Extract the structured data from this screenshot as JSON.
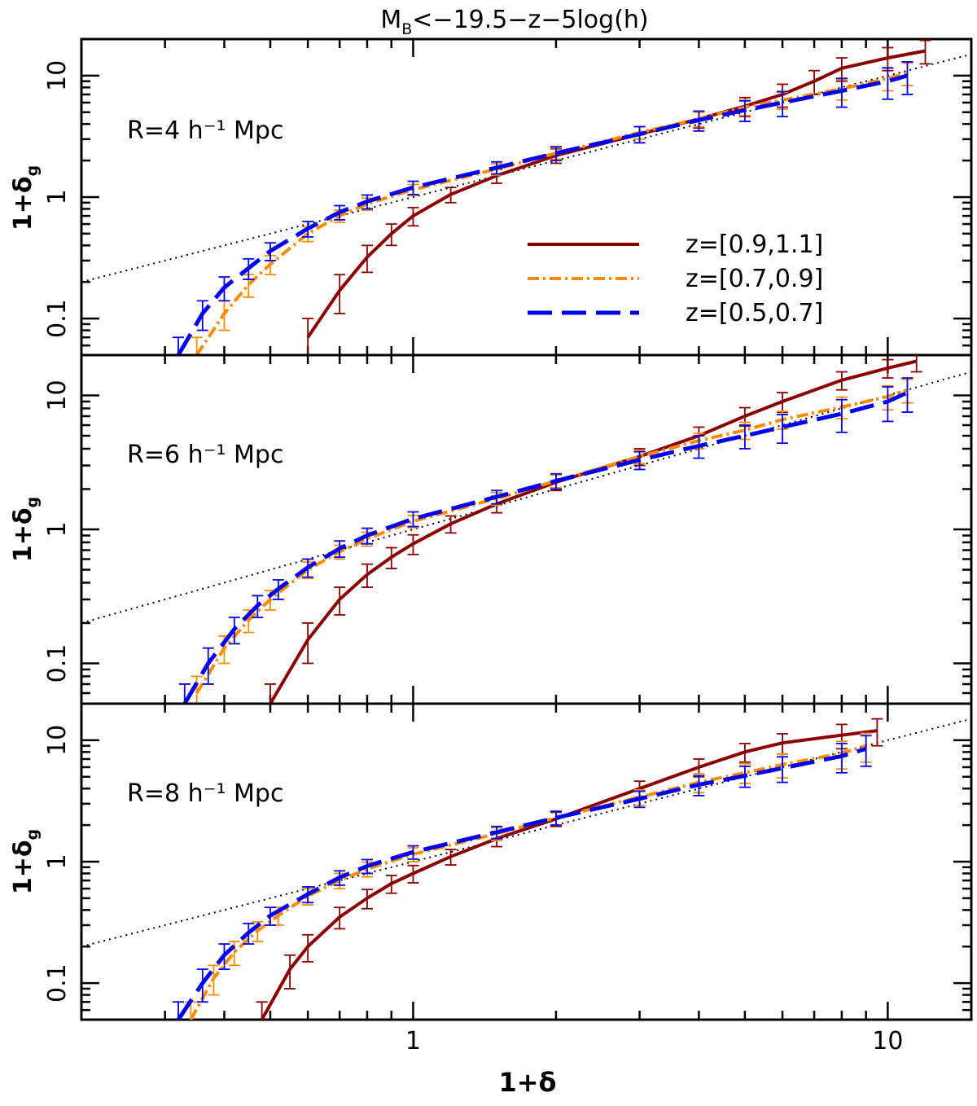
{
  "figure_title": "M<sub>B</sub><−19.5−z−5log(h)",
  "title_main": "M",
  "title_sub": "B",
  "title_rest": "<−19.5−z−5log(h)",
  "xlabel": "1+δ",
  "ylabel_main": "1+δ",
  "ylabel_sub": "g",
  "colors": {
    "z09_11": "#8b0000",
    "z07_09": "#ff8c00",
    "z05_07": "#0000ee",
    "reference": "#000000"
  },
  "legend": [
    {
      "label": "z=[0.9,1.1]",
      "style": "solid",
      "color": "#8b0000"
    },
    {
      "label": "z=[0.7,0.9]",
      "style": "dash-dot",
      "color": "#ff8c00"
    },
    {
      "label": "z=[0.5,0.7]",
      "style": "long-dash",
      "color": "#0000ee"
    }
  ],
  "chart_data": [
    {
      "type": "line",
      "panel_label": "R=4 h⁻¹ Mpc",
      "xlim": [
        0.2,
        15
      ],
      "ylim": [
        0.05,
        20
      ],
      "xscale": "log",
      "yscale": "log",
      "xticks": [],
      "xtick_labels": [
        "",
        "",
        ""
      ],
      "yticks": [
        0.1,
        1,
        10
      ],
      "ytick_labels": [
        "0.1",
        "1",
        "10"
      ],
      "reference_line": {
        "style": "dotted",
        "x": [
          0.2,
          15
        ],
        "y": [
          0.2,
          15
        ]
      },
      "series": [
        {
          "name": "z=[0.9,1.1]",
          "x": [
            0.6,
            0.7,
            0.8,
            0.9,
            1.0,
            1.2,
            1.5,
            2.0,
            3.0,
            4.0,
            5.0,
            6.0,
            7.0,
            8.0,
            10.0,
            12.0
          ],
          "y": [
            0.07,
            0.17,
            0.32,
            0.5,
            0.7,
            1.05,
            1.5,
            2.2,
            3.3,
            4.4,
            5.6,
            7.0,
            9.0,
            11.5,
            14.0,
            16.0
          ],
          "err": [
            0.03,
            0.06,
            0.08,
            0.1,
            0.12,
            0.15,
            0.2,
            0.3,
            0.5,
            0.7,
            1.0,
            1.5,
            2.0,
            2.5,
            3.0,
            3.5
          ]
        },
        {
          "name": "z=[0.7,0.9]",
          "x": [
            0.35,
            0.4,
            0.45,
            0.5,
            0.6,
            0.7,
            0.8,
            1.0,
            1.5,
            2.0,
            3.0,
            4.0,
            5.0,
            6.0,
            8.0,
            10.0,
            11.0
          ],
          "y": [
            0.05,
            0.11,
            0.19,
            0.28,
            0.5,
            0.7,
            0.88,
            1.15,
            1.7,
            2.3,
            3.4,
            4.4,
            5.5,
            6.3,
            7.8,
            9.5,
            10.5
          ],
          "err": [
            0.02,
            0.03,
            0.04,
            0.05,
            0.07,
            0.08,
            0.1,
            0.12,
            0.18,
            0.25,
            0.4,
            0.6,
            0.8,
            1.0,
            1.5,
            2.0,
            2.2
          ]
        },
        {
          "name": "z=[0.5,0.7]",
          "x": [
            0.32,
            0.36,
            0.4,
            0.45,
            0.5,
            0.6,
            0.7,
            0.8,
            1.0,
            1.5,
            2.0,
            3.0,
            4.0,
            5.0,
            6.0,
            8.0,
            10.0,
            11.0
          ],
          "y": [
            0.05,
            0.11,
            0.18,
            0.26,
            0.36,
            0.55,
            0.75,
            0.92,
            1.2,
            1.75,
            2.3,
            3.3,
            4.3,
            5.2,
            6.0,
            7.5,
            9.0,
            10.0
          ],
          "err": [
            0.02,
            0.03,
            0.04,
            0.05,
            0.06,
            0.08,
            0.1,
            0.12,
            0.15,
            0.2,
            0.3,
            0.5,
            0.8,
            1.0,
            1.4,
            2.0,
            2.6,
            3.0
          ]
        }
      ]
    },
    {
      "type": "line",
      "panel_label": "R=6 h⁻¹ Mpc",
      "xlim": [
        0.2,
        15
      ],
      "ylim": [
        0.05,
        20
      ],
      "xscale": "log",
      "yscale": "log",
      "xticks": [],
      "xtick_labels": [
        "",
        "",
        ""
      ],
      "yticks": [
        0.1,
        1,
        10
      ],
      "ytick_labels": [
        "0.1",
        "1",
        "10"
      ],
      "reference_line": {
        "style": "dotted",
        "x": [
          0.2,
          15
        ],
        "y": [
          0.2,
          15
        ]
      },
      "series": [
        {
          "name": "z=[0.9,1.1]",
          "x": [
            0.5,
            0.6,
            0.7,
            0.8,
            0.9,
            1.0,
            1.2,
            1.5,
            2.0,
            3.0,
            4.0,
            5.0,
            6.0,
            8.0,
            10.0,
            11.5
          ],
          "y": [
            0.05,
            0.15,
            0.3,
            0.46,
            0.62,
            0.78,
            1.1,
            1.55,
            2.25,
            3.5,
            5.0,
            7.0,
            9.0,
            13.0,
            16.0,
            18.0
          ],
          "err": [
            0.02,
            0.05,
            0.07,
            0.09,
            0.11,
            0.13,
            0.16,
            0.22,
            0.3,
            0.5,
            0.8,
            1.1,
            1.5,
            2.0,
            2.5,
            3.0
          ]
        },
        {
          "name": "z=[0.7,0.9]",
          "x": [
            0.35,
            0.4,
            0.45,
            0.5,
            0.6,
            0.7,
            0.8,
            1.0,
            1.5,
            2.0,
            3.0,
            4.0,
            5.0,
            6.0,
            8.0,
            10.0,
            11.0
          ],
          "y": [
            0.06,
            0.13,
            0.21,
            0.3,
            0.5,
            0.68,
            0.85,
            1.15,
            1.7,
            2.3,
            3.5,
            4.6,
            5.5,
            6.6,
            8.2,
            9.8,
            11.0
          ],
          "err": [
            0.02,
            0.03,
            0.04,
            0.05,
            0.07,
            0.08,
            0.1,
            0.12,
            0.18,
            0.25,
            0.4,
            0.6,
            0.8,
            1.0,
            1.5,
            2.0,
            2.2
          ]
        },
        {
          "name": "z=[0.5,0.7]",
          "x": [
            0.33,
            0.37,
            0.42,
            0.47,
            0.52,
            0.6,
            0.7,
            0.8,
            1.0,
            1.5,
            2.0,
            3.0,
            4.0,
            5.0,
            6.0,
            8.0,
            10.0,
            11.0
          ],
          "y": [
            0.05,
            0.1,
            0.18,
            0.27,
            0.36,
            0.52,
            0.72,
            0.9,
            1.2,
            1.75,
            2.3,
            3.3,
            4.2,
            5.0,
            5.8,
            7.3,
            9.0,
            10.5
          ],
          "err": [
            0.02,
            0.03,
            0.04,
            0.05,
            0.06,
            0.08,
            0.1,
            0.12,
            0.15,
            0.2,
            0.3,
            0.5,
            0.8,
            1.0,
            1.4,
            2.0,
            2.6,
            3.0
          ]
        }
      ]
    },
    {
      "type": "line",
      "panel_label": "R=8 h⁻¹ Mpc",
      "xlim": [
        0.2,
        15
      ],
      "ylim": [
        0.05,
        20
      ],
      "xscale": "log",
      "yscale": "log",
      "xticks": [
        1,
        10
      ],
      "xtick_labels": [
        "1",
        "10"
      ],
      "yticks": [
        0.1,
        1,
        10
      ],
      "ytick_labels": [
        "0.1",
        "1",
        "10"
      ],
      "reference_line": {
        "style": "dotted",
        "x": [
          0.2,
          15
        ],
        "y": [
          0.2,
          15
        ]
      },
      "series": [
        {
          "name": "z=[0.9,1.1]",
          "x": [
            0.48,
            0.55,
            0.6,
            0.7,
            0.8,
            0.9,
            1.0,
            1.2,
            1.5,
            2.0,
            3.0,
            4.0,
            5.0,
            6.0,
            8.0,
            9.5
          ],
          "y": [
            0.05,
            0.13,
            0.2,
            0.35,
            0.5,
            0.66,
            0.8,
            1.1,
            1.55,
            2.25,
            4.0,
            6.0,
            8.0,
            9.5,
            11.0,
            12.0
          ],
          "err": [
            0.02,
            0.04,
            0.05,
            0.07,
            0.09,
            0.11,
            0.13,
            0.16,
            0.22,
            0.3,
            0.6,
            1.0,
            1.4,
            1.8,
            2.5,
            3.0
          ]
        },
        {
          "name": "z=[0.7,0.9]",
          "x": [
            0.34,
            0.38,
            0.42,
            0.47,
            0.52,
            0.6,
            0.7,
            0.8,
            1.0,
            1.5,
            2.0,
            3.0,
            4.0,
            5.0,
            6.0,
            8.0,
            9.0
          ],
          "y": [
            0.05,
            0.11,
            0.18,
            0.27,
            0.36,
            0.52,
            0.7,
            0.87,
            1.15,
            1.7,
            2.3,
            3.4,
            4.5,
            5.4,
            6.3,
            7.8,
            9.0
          ],
          "err": [
            0.02,
            0.03,
            0.04,
            0.05,
            0.06,
            0.08,
            0.1,
            0.12,
            0.15,
            0.2,
            0.3,
            0.5,
            0.8,
            1.0,
            1.4,
            2.0,
            2.4
          ]
        },
        {
          "name": "z=[0.5,0.7]",
          "x": [
            0.32,
            0.36,
            0.4,
            0.45,
            0.5,
            0.6,
            0.7,
            0.8,
            1.0,
            1.5,
            2.0,
            3.0,
            4.0,
            5.0,
            6.0,
            8.0,
            9.0
          ],
          "y": [
            0.05,
            0.1,
            0.17,
            0.26,
            0.36,
            0.54,
            0.74,
            0.92,
            1.2,
            1.75,
            2.3,
            3.3,
            4.3,
            5.1,
            5.9,
            7.4,
            8.5
          ],
          "err": [
            0.02,
            0.03,
            0.04,
            0.05,
            0.06,
            0.08,
            0.1,
            0.12,
            0.15,
            0.2,
            0.3,
            0.5,
            0.8,
            1.0,
            1.4,
            2.0,
            2.4
          ]
        }
      ]
    }
  ]
}
